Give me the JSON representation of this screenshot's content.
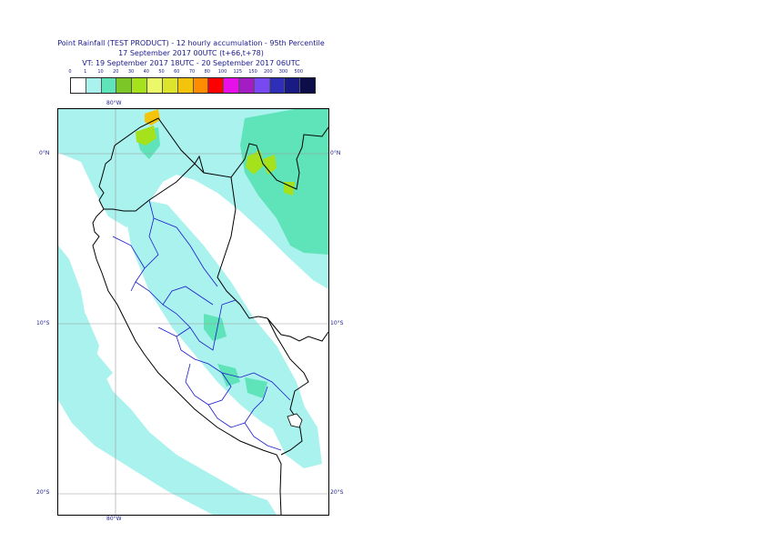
{
  "title": {
    "line1": "Point Rainfall (TEST PRODUCT) - 12 hourly accumulation - 95th Percentile",
    "line2": "17 September 2017 00UTC (t+66,t+78)",
    "line3": "VT: 19 September 2017 18UTC - 20 September 2017 06UTC"
  },
  "legend": {
    "thresholds": [
      "0",
      "1",
      "10",
      "20",
      "30",
      "40",
      "50",
      "60",
      "70",
      "80",
      "100",
      "125",
      "150",
      "200",
      "300",
      "500"
    ],
    "colors": [
      "#ffffff",
      "#a9f2ee",
      "#5fe3b8",
      "#7cc627",
      "#a6e21c",
      "#eaf86a",
      "#dde42c",
      "#f4c40d",
      "#ff8c00",
      "#ff0000",
      "#e810e8",
      "#a31cc4",
      "#7849f0",
      "#2e2eb8",
      "#1a1a84",
      "#0d0d4a"
    ]
  },
  "axes": {
    "lon_top": "80°W",
    "lon_bottom": "80°W",
    "lat_labels": [
      {
        "left": "0°N",
        "right": "0°N"
      },
      {
        "left": "10°S",
        "right": "10°S"
      },
      {
        "left": "20°S",
        "right": "20°S"
      }
    ]
  },
  "colors": {
    "light_rain": "#a9f2ee",
    "moderate_rain": "#5fe3b8",
    "heavy_rain": "#7cc627",
    "very_heavy": "#f4c40d",
    "country_border": "#000000",
    "region_border": "#1a1acc",
    "grid": "#9a9a9a"
  }
}
